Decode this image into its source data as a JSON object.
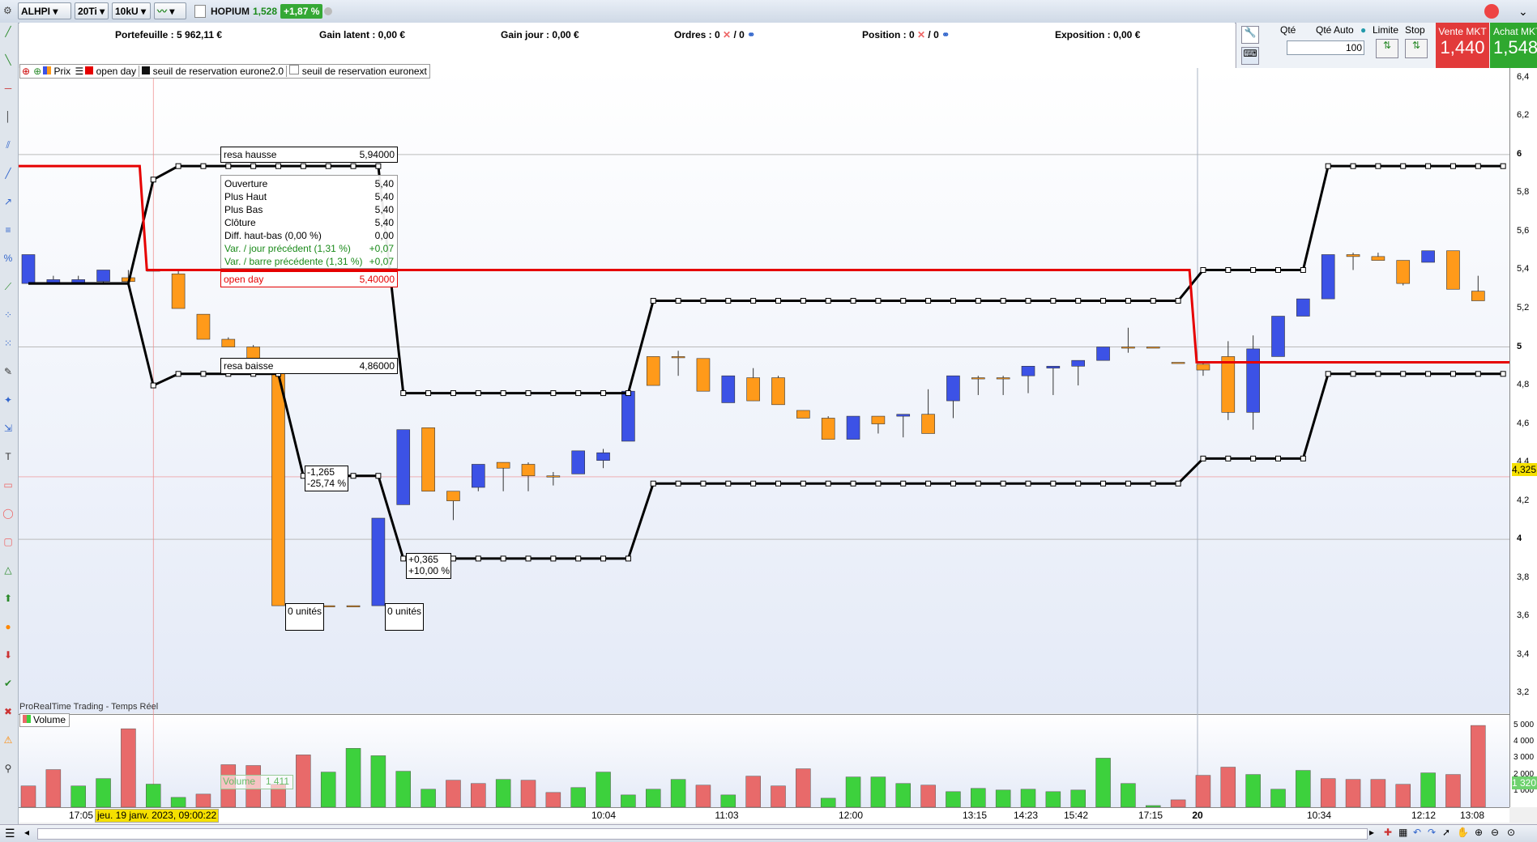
{
  "topbar": {
    "symbol": "ALHPI",
    "timeframe": "20Ti",
    "units": "10kU",
    "instrument": "HOPIUM",
    "last": "1,528",
    "change": "+1,87 %"
  },
  "account": {
    "portefeuille": "Portefeuille : 5 962,11 €",
    "gain_latent": "Gain latent : 0,00 €",
    "gain_jour": "Gain jour : 0,00 €",
    "ordres_label": "Ordres : 0",
    "ordres_sep": "/ 0",
    "position_label": "Position : 0",
    "position_sep": "/ 0",
    "exposition": "Exposition : 0,00 €"
  },
  "order_panel": {
    "qty_label": "Qté",
    "qty_auto_label": "Qté Auto",
    "qty_value": "100",
    "limit_label": "Limite",
    "stop_label": "Stop",
    "sell_label": "Vente MKT",
    "sell_price": "1,440",
    "buy_label": "Achat MKT",
    "buy_price": "1,548",
    "sell_color": "#e23a3a",
    "buy_color": "#2fa82f"
  },
  "legend": {
    "price": "Prix",
    "open_day": "open day",
    "resa_euro2": "seuil de reservation eurone2.0",
    "resa_euronext": "seuil de reservation euronext"
  },
  "labels": {
    "resa_hausse": "resa hausse",
    "resa_hausse_val": "5,94000",
    "resa_baisse": "resa baisse",
    "resa_baisse_val": "4,86000",
    "open_day": "open day",
    "open_day_val": "5,40000",
    "units1": "0 unités",
    "units2": "0 unités",
    "drop1": "-1,265",
    "drop2": "-25,74 %",
    "rise1": "+0,365",
    "rise2": "+10,00 %",
    "source": "ProRealTime Trading - Temps Réel",
    "volume_panel": "Volume",
    "volume_tip": "Volume",
    "volume_tip_val": "1 411",
    "cursor_price": "4,325",
    "vol_cursor": "1 320"
  },
  "tooltip": {
    "rows": [
      {
        "k": "Ouverture",
        "v": "5,40",
        "green": false
      },
      {
        "k": "Plus Haut",
        "v": "5,40",
        "green": false
      },
      {
        "k": "Plus Bas",
        "v": "5,40",
        "green": false
      },
      {
        "k": "Clôture",
        "v": "5,40",
        "green": false
      },
      {
        "k": "Diff. haut-bas (0,00 %)",
        "v": "0,00",
        "green": false
      },
      {
        "k": "Var. / jour précédent (1,31 %)",
        "v": "+0,07",
        "green": true
      },
      {
        "k": "Var. / barre précédente (1,31 %)",
        "v": "+0,07",
        "green": true
      }
    ]
  },
  "axes": {
    "price_ticks": [
      "6,4",
      "6,2",
      "6",
      "5,8",
      "5,6",
      "5,4",
      "5,2",
      "5",
      "4,8",
      "4,6",
      "4,4",
      "4,2",
      "4",
      "3,8",
      "3,6",
      "3,4",
      "3,2"
    ],
    "volume_ticks": [
      "5 000",
      "4 000",
      "3 000",
      "2 000",
      "1 000"
    ],
    "time_labels": [
      {
        "t": "17:05",
        "bold": false
      },
      {
        "t": "10:04",
        "bold": false
      },
      {
        "t": "11:03",
        "bold": false
      },
      {
        "t": "12:00",
        "bold": false
      },
      {
        "t": "13:15",
        "bold": false
      },
      {
        "t": "14:23",
        "bold": false
      },
      {
        "t": "15:42",
        "bold": false
      },
      {
        "t": "17:15",
        "bold": false
      },
      {
        "t": "20",
        "bold": true
      },
      {
        "t": "10:34",
        "bold": false
      },
      {
        "t": "12:12",
        "bold": false
      },
      {
        "t": "13:08",
        "bold": false
      }
    ],
    "date_cursor": "jeu. 19 janv. 2023, 09:00:22"
  },
  "chart_data": {
    "type": "candlestick",
    "ylim": [
      3.1,
      6.45
    ],
    "colors": {
      "up": "#3c52e6",
      "down": "#ff9a1a",
      "vol_up": "#3dd13d",
      "vol_down": "#e86a6a",
      "open_day": "#e60000"
    },
    "candles": [
      {
        "o": 5.33,
        "h": 5.48,
        "l": 5.33,
        "c": 5.48
      },
      {
        "o": 5.33,
        "h": 5.37,
        "l": 5.33,
        "c": 5.35
      },
      {
        "o": 5.33,
        "h": 5.37,
        "l": 5.33,
        "c": 5.35
      },
      {
        "o": 5.34,
        "h": 5.4,
        "l": 5.33,
        "c": 5.4
      },
      {
        "o": 5.36,
        "h": 5.4,
        "l": 5.34,
        "c": 5.34
      },
      {
        "o": 5.4,
        "h": 5.4,
        "l": 5.4,
        "c": 5.4
      },
      {
        "o": 5.38,
        "h": 5.4,
        "l": 5.2,
        "c": 5.2
      },
      {
        "o": 5.17,
        "h": 5.17,
        "l": 5.04,
        "c": 5.04
      },
      {
        "o": 5.04,
        "h": 5.05,
        "l": 5.0,
        "c": 5.0
      },
      {
        "o": 5.0,
        "h": 5.01,
        "l": 4.92,
        "c": 4.92
      },
      {
        "o": 4.92,
        "h": 4.92,
        "l": 3.655,
        "c": 3.655
      },
      {
        "o": 3.655,
        "h": 3.655,
        "l": 3.655,
        "c": 3.655
      },
      {
        "o": 3.655,
        "h": 3.655,
        "l": 3.655,
        "c": 3.655
      },
      {
        "o": 3.655,
        "h": 3.655,
        "l": 3.655,
        "c": 3.655
      },
      {
        "o": 3.655,
        "h": 4.11,
        "l": 3.655,
        "c": 4.11
      },
      {
        "o": 4.18,
        "h": 4.57,
        "l": 4.18,
        "c": 4.57
      },
      {
        "o": 4.58,
        "h": 4.58,
        "l": 4.25,
        "c": 4.25
      },
      {
        "o": 4.25,
        "h": 4.25,
        "l": 4.1,
        "c": 4.2
      },
      {
        "o": 4.27,
        "h": 4.39,
        "l": 4.25,
        "c": 4.39
      },
      {
        "o": 4.4,
        "h": 4.4,
        "l": 4.25,
        "c": 4.37
      },
      {
        "o": 4.39,
        "h": 4.4,
        "l": 4.25,
        "c": 4.33
      },
      {
        "o": 4.33,
        "h": 4.35,
        "l": 4.28,
        "c": 4.33
      },
      {
        "o": 4.34,
        "h": 4.46,
        "l": 4.34,
        "c": 4.46
      },
      {
        "o": 4.41,
        "h": 4.47,
        "l": 4.37,
        "c": 4.45
      },
      {
        "o": 4.51,
        "h": 4.77,
        "l": 4.51,
        "c": 4.77
      },
      {
        "o": 4.95,
        "h": 4.95,
        "l": 4.8,
        "c": 4.8
      },
      {
        "o": 4.95,
        "h": 4.98,
        "l": 4.85,
        "c": 4.95
      },
      {
        "o": 4.94,
        "h": 4.94,
        "l": 4.77,
        "c": 4.77
      },
      {
        "o": 4.71,
        "h": 4.85,
        "l": 4.71,
        "c": 4.85
      },
      {
        "o": 4.84,
        "h": 4.89,
        "l": 4.72,
        "c": 4.72
      },
      {
        "o": 4.84,
        "h": 4.85,
        "l": 4.7,
        "c": 4.7
      },
      {
        "o": 4.67,
        "h": 4.67,
        "l": 4.63,
        "c": 4.63
      },
      {
        "o": 4.63,
        "h": 4.64,
        "l": 4.52,
        "c": 4.52
      },
      {
        "o": 4.52,
        "h": 4.64,
        "l": 4.52,
        "c": 4.64
      },
      {
        "o": 4.64,
        "h": 4.64,
        "l": 4.55,
        "c": 4.6
      },
      {
        "o": 4.64,
        "h": 4.65,
        "l": 4.53,
        "c": 4.65
      },
      {
        "o": 4.65,
        "h": 4.78,
        "l": 4.55,
        "c": 4.55
      },
      {
        "o": 4.72,
        "h": 4.85,
        "l": 4.63,
        "c": 4.85
      },
      {
        "o": 4.84,
        "h": 4.85,
        "l": 4.75,
        "c": 4.84
      },
      {
        "o": 4.84,
        "h": 4.85,
        "l": 4.75,
        "c": 4.84
      },
      {
        "o": 4.85,
        "h": 4.9,
        "l": 4.76,
        "c": 4.9
      },
      {
        "o": 4.89,
        "h": 4.9,
        "l": 4.75,
        "c": 4.9
      },
      {
        "o": 4.9,
        "h": 4.93,
        "l": 4.8,
        "c": 4.93
      },
      {
        "o": 4.93,
        "h": 5.0,
        "l": 4.93,
        "c": 5.0
      },
      {
        "o": 5.0,
        "h": 5.1,
        "l": 4.97,
        "c": 5.0
      },
      {
        "o": 5.0,
        "h": 5.0,
        "l": 5.0,
        "c": 5.0
      },
      {
        "o": 4.92,
        "h": 4.92,
        "l": 4.92,
        "c": 4.92
      },
      {
        "o": 4.91,
        "h": 4.92,
        "l": 4.85,
        "c": 4.88
      },
      {
        "o": 4.95,
        "h": 5.03,
        "l": 4.62,
        "c": 4.66
      },
      {
        "o": 4.66,
        "h": 5.06,
        "l": 4.57,
        "c": 4.99
      },
      {
        "o": 4.95,
        "h": 5.16,
        "l": 4.95,
        "c": 5.16
      },
      {
        "o": 5.16,
        "h": 5.25,
        "l": 5.16,
        "c": 5.25
      },
      {
        "o": 5.25,
        "h": 5.48,
        "l": 5.25,
        "c": 5.48
      },
      {
        "o": 5.48,
        "h": 5.49,
        "l": 5.4,
        "c": 5.47
      },
      {
        "o": 5.47,
        "h": 5.49,
        "l": 5.45,
        "c": 5.45
      },
      {
        "o": 5.45,
        "h": 5.45,
        "l": 5.32,
        "c": 5.33
      },
      {
        "o": 5.44,
        "h": 5.5,
        "l": 5.44,
        "c": 5.5
      },
      {
        "o": 5.5,
        "h": 5.5,
        "l": 5.3,
        "c": 5.3
      },
      {
        "o": 5.29,
        "h": 5.37,
        "l": 5.24,
        "c": 5.24
      }
    ],
    "volumes": [
      {
        "v": 1300,
        "up": false
      },
      {
        "v": 2300,
        "up": false
      },
      {
        "v": 1300,
        "up": true
      },
      {
        "v": 1750,
        "up": true
      },
      {
        "v": 4800,
        "up": false
      },
      {
        "v": 1411,
        "up": true
      },
      {
        "v": 600,
        "up": true
      },
      {
        "v": 800,
        "up": false
      },
      {
        "v": 2600,
        "up": false
      },
      {
        "v": 2550,
        "up": false
      },
      {
        "v": 1400,
        "up": false
      },
      {
        "v": 3200,
        "up": false
      },
      {
        "v": 2150,
        "up": true
      },
      {
        "v": 3600,
        "up": true
      },
      {
        "v": 3150,
        "up": true
      },
      {
        "v": 2200,
        "up": true
      },
      {
        "v": 1100,
        "up": true
      },
      {
        "v": 1650,
        "up": false
      },
      {
        "v": 1450,
        "up": false
      },
      {
        "v": 1700,
        "up": true
      },
      {
        "v": 1650,
        "up": false
      },
      {
        "v": 900,
        "up": false
      },
      {
        "v": 1200,
        "up": true
      },
      {
        "v": 2150,
        "up": true
      },
      {
        "v": 750,
        "up": true
      },
      {
        "v": 1100,
        "up": true
      },
      {
        "v": 1700,
        "up": true
      },
      {
        "v": 1350,
        "up": false
      },
      {
        "v": 750,
        "up": true
      },
      {
        "v": 1900,
        "up": false
      },
      {
        "v": 1300,
        "up": false
      },
      {
        "v": 2350,
        "up": false
      },
      {
        "v": 550,
        "up": true
      },
      {
        "v": 1850,
        "up": true
      },
      {
        "v": 1850,
        "up": true
      },
      {
        "v": 1450,
        "up": true
      },
      {
        "v": 1350,
        "up": false
      },
      {
        "v": 950,
        "up": true
      },
      {
        "v": 1150,
        "up": true
      },
      {
        "v": 1050,
        "up": true
      },
      {
        "v": 1100,
        "up": true
      },
      {
        "v": 950,
        "up": true
      },
      {
        "v": 1050,
        "up": true
      },
      {
        "v": 3000,
        "up": true
      },
      {
        "v": 1450,
        "up": true
      },
      {
        "v": 100,
        "up": true
      },
      {
        "v": 450,
        "up": false
      },
      {
        "v": 1950,
        "up": false
      },
      {
        "v": 2450,
        "up": false
      },
      {
        "v": 2000,
        "up": true
      },
      {
        "v": 1100,
        "up": true
      },
      {
        "v": 2250,
        "up": true
      },
      {
        "v": 1750,
        "up": false
      },
      {
        "v": 1700,
        "up": false
      },
      {
        "v": 1700,
        "up": false
      },
      {
        "v": 1400,
        "up": false
      },
      {
        "v": 2100,
        "up": true
      },
      {
        "v": 2000,
        "up": false
      },
      {
        "v": 5000,
        "up": false
      }
    ],
    "volume_ylim": [
      0,
      5400
    ],
    "resa_upper": [
      5.33,
      5.33,
      5.33,
      5.33,
      5.33,
      5.87,
      5.94,
      5.94,
      5.94,
      5.94,
      5.94,
      5.94,
      5.94,
      5.94,
      5.94,
      4.76,
      4.76,
      4.76,
      4.76,
      4.76,
      4.76,
      4.76,
      4.76,
      4.76,
      4.76,
      5.24,
      5.24,
      5.24,
      5.24,
      5.24,
      5.24,
      5.24,
      5.24,
      5.24,
      5.24,
      5.24,
      5.24,
      5.24,
      5.24,
      5.24,
      5.24,
      5.24,
      5.24,
      5.24,
      5.24,
      5.24,
      5.24,
      5.4,
      5.4,
      5.4,
      5.4,
      5.4,
      5.94,
      5.94,
      5.94,
      5.94,
      5.94,
      5.94,
      5.94,
      5.94
    ],
    "resa_lower": [
      5.33,
      5.33,
      5.33,
      5.33,
      5.33,
      4.8,
      4.86,
      4.86,
      4.86,
      4.86,
      4.86,
      4.33,
      4.33,
      4.33,
      4.33,
      3.9,
      3.9,
      3.9,
      3.9,
      3.9,
      3.9,
      3.9,
      3.9,
      3.9,
      3.9,
      4.29,
      4.29,
      4.29,
      4.29,
      4.29,
      4.29,
      4.29,
      4.29,
      4.29,
      4.29,
      4.29,
      4.29,
      4.29,
      4.29,
      4.29,
      4.29,
      4.29,
      4.29,
      4.29,
      4.29,
      4.29,
      4.29,
      4.42,
      4.42,
      4.42,
      4.42,
      4.42,
      4.86,
      4.86,
      4.86,
      4.86,
      4.86,
      4.86,
      4.86,
      4.86
    ],
    "open_day": [
      {
        "from": 0,
        "to": 4,
        "v": 5.94
      },
      {
        "from": 5,
        "to": 46,
        "v": 5.4
      },
      {
        "from": 47,
        "to": 58,
        "v": 4.92
      }
    ],
    "crosshair_price": 4.325
  }
}
